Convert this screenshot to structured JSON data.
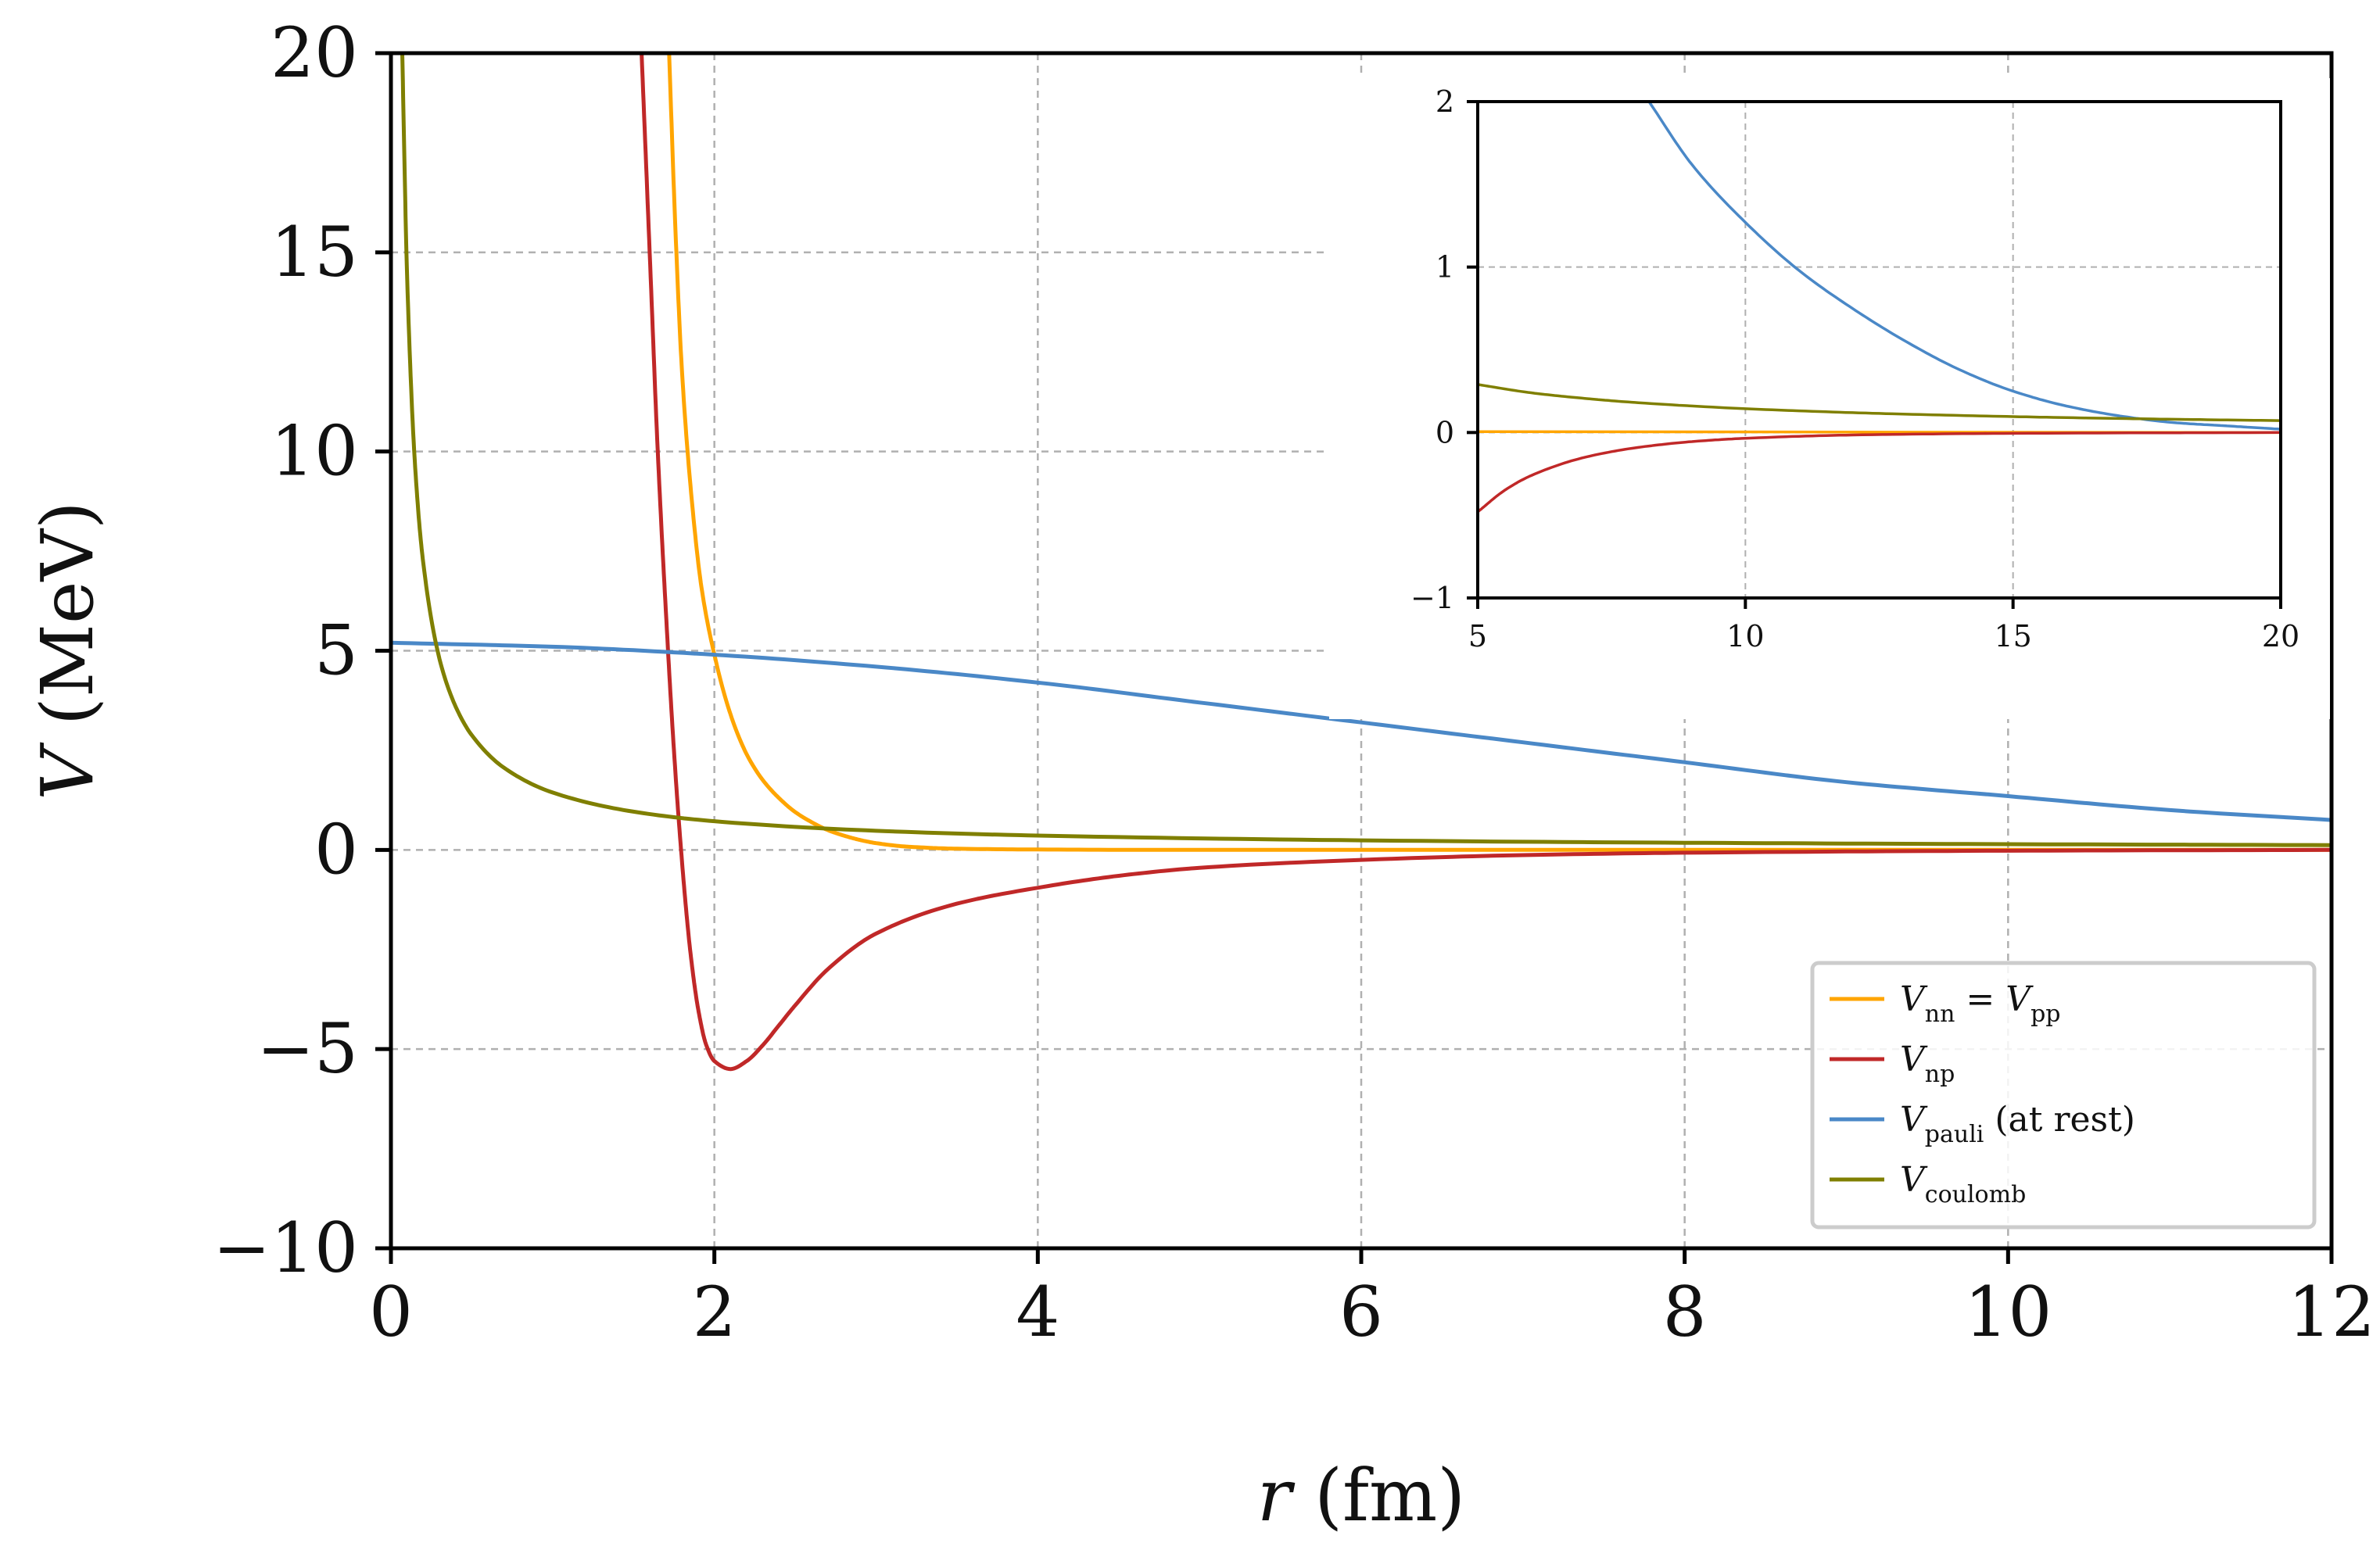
{
  "chart_data": [
    {
      "type": "line",
      "xlabel": "r (fm)",
      "ylabel": "V (MeV)",
      "xlim": [
        0,
        12
      ],
      "ylim": [
        -10,
        20
      ],
      "x_ticks": [
        "0",
        "2",
        "4",
        "6",
        "8",
        "10",
        "12"
      ],
      "y_ticks": [
        "−10",
        "−5",
        "0",
        "5",
        "10",
        "15",
        "20"
      ],
      "grid": true,
      "legend_position": "bottom-right",
      "series": [
        {
          "name": "V_nn = V_pp",
          "color": "#ffa500",
          "x": [
            1.72,
            1.76,
            1.8,
            1.86,
            1.92,
            2.0,
            2.1,
            2.2,
            2.3,
            2.4,
            2.5,
            2.6,
            2.7,
            2.8,
            2.9,
            3.0,
            3.2,
            3.5,
            4.0,
            5.0,
            6.0,
            8.0,
            10.0,
            12.0
          ],
          "y": [
            20,
            15.5,
            12.0,
            8.8,
            6.6,
            4.9,
            3.4,
            2.4,
            1.75,
            1.3,
            0.95,
            0.7,
            0.5,
            0.36,
            0.25,
            0.17,
            0.08,
            0.03,
            0.01,
            0.0,
            0.0,
            0.0,
            0.0,
            0.0
          ]
        },
        {
          "name": "V_np",
          "color": "#c02828",
          "x": [
            1.55,
            1.6,
            1.65,
            1.7,
            1.75,
            1.8,
            1.85,
            1.9,
            1.95,
            2.0,
            2.1,
            2.2,
            2.3,
            2.4,
            2.5,
            2.7,
            3.0,
            3.5,
            4.0,
            4.5,
            5.0,
            6.0,
            7.0,
            8.0,
            10.0,
            12.0
          ],
          "y": [
            20,
            15.0,
            10.0,
            6.0,
            2.5,
            -0.3,
            -2.5,
            -4.0,
            -4.9,
            -5.3,
            -5.5,
            -5.3,
            -4.9,
            -4.4,
            -3.9,
            -3.0,
            -2.1,
            -1.35,
            -0.95,
            -0.65,
            -0.45,
            -0.25,
            -0.13,
            -0.07,
            -0.02,
            0.0
          ]
        },
        {
          "name": "V_pauli (at rest)",
          "color": "#4a88c7",
          "x": [
            0,
            1,
            2,
            3,
            4,
            5,
            6,
            7,
            8,
            9,
            10,
            11,
            12
          ],
          "y": [
            5.2,
            5.1,
            4.9,
            4.6,
            4.2,
            3.7,
            3.2,
            2.7,
            2.2,
            1.7,
            1.35,
            1.0,
            0.75
          ]
        },
        {
          "name": "V_coulomb",
          "color": "#7f7f00",
          "x": [
            0.07,
            0.1,
            0.15,
            0.2,
            0.3,
            0.4,
            0.5,
            0.7,
            1.0,
            1.5,
            2.0,
            3.0,
            4.0,
            6.0,
            8.0,
            10.0,
            12.0
          ],
          "y": [
            20,
            14.4,
            9.6,
            7.2,
            4.8,
            3.6,
            2.88,
            2.06,
            1.44,
            0.96,
            0.72,
            0.48,
            0.36,
            0.24,
            0.18,
            0.144,
            0.12
          ]
        }
      ]
    },
    {
      "type": "line",
      "xlim": [
        5,
        20
      ],
      "ylim": [
        -1,
        2
      ],
      "x_ticks": [
        "5",
        "10",
        "15",
        "20"
      ],
      "y_ticks": [
        "−1",
        "0",
        "1",
        "2"
      ],
      "grid": true,
      "series": [
        {
          "color": "#ffa500",
          "x": [
            5,
            20
          ],
          "y": [
            0.005,
            0.0
          ]
        },
        {
          "color": "#c02828",
          "x": [
            5,
            5.5,
            6,
            7,
            8,
            9,
            10,
            12,
            15,
            20
          ],
          "y": [
            -0.48,
            -0.35,
            -0.26,
            -0.15,
            -0.09,
            -0.055,
            -0.035,
            -0.015,
            -0.005,
            0.0
          ]
        },
        {
          "color": "#4a88c7",
          "x": [
            8.2,
            9,
            10,
            11,
            12,
            13,
            14,
            15,
            16,
            17,
            18,
            19,
            20
          ],
          "y": [
            2.0,
            1.62,
            1.27,
            0.98,
            0.75,
            0.55,
            0.38,
            0.25,
            0.16,
            0.1,
            0.06,
            0.04,
            0.02
          ]
        },
        {
          "color": "#7f7f00",
          "x": [
            5,
            6,
            7,
            8,
            10,
            12,
            14,
            16,
            18,
            20
          ],
          "y": [
            0.29,
            0.24,
            0.206,
            0.18,
            0.144,
            0.12,
            0.103,
            0.09,
            0.08,
            0.072
          ]
        }
      ]
    }
  ],
  "legend": {
    "entries": [
      {
        "main": "V",
        "sub": "nn",
        "mid": " = V",
        "sub2": "pp",
        "tail": ""
      },
      {
        "main": "V",
        "sub": "np",
        "mid": "",
        "sub2": "",
        "tail": ""
      },
      {
        "main": "V",
        "sub": "pauli",
        "mid": "",
        "sub2": "",
        "tail": " (at rest)"
      },
      {
        "main": "V",
        "sub": "coulomb",
        "mid": "",
        "sub2": "",
        "tail": ""
      }
    ]
  }
}
